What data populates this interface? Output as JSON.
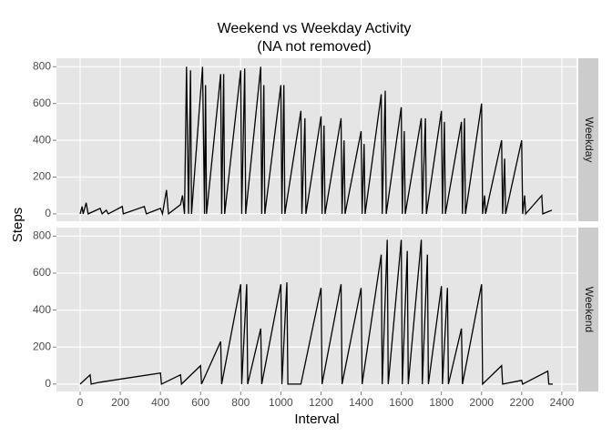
{
  "chart_data": {
    "type": "line",
    "title": "Weekend vs Weekday Activity",
    "subtitle": "(NA not removed)",
    "x_label": "Interval",
    "y_label": "Steps",
    "xlim": [
      -118,
      2473
    ],
    "xticks": [
      0,
      200,
      400,
      600,
      800,
      1000,
      1200,
      1400,
      1600,
      1800,
      2000,
      2200,
      2400
    ],
    "ylim": [
      -40,
      846
    ],
    "yticks": [
      0,
      200,
      400,
      600,
      800
    ],
    "grid": true,
    "series": [
      {
        "name": "Weekday",
        "color": "#000000",
        "x": [
          0,
          10,
          15,
          30,
          40,
          100,
          110,
          130,
          140,
          210,
          215,
          320,
          330,
          400,
          410,
          430,
          440,
          500,
          510,
          520,
          530,
          540,
          550,
          555,
          610,
          620,
          625,
          630,
          700,
          705,
          715,
          720,
          800,
          805,
          820,
          825,
          900,
          905,
          915,
          920,
          1000,
          1005,
          1015,
          1020,
          1100,
          1105,
          1120,
          1125,
          1200,
          1205,
          1215,
          1220,
          1300,
          1305,
          1315,
          1320,
          1400,
          1405,
          1415,
          1420,
          1500,
          1505,
          1520,
          1525,
          1600,
          1605,
          1615,
          1620,
          1700,
          1705,
          1720,
          1725,
          1800,
          1805,
          1815,
          1820,
          1900,
          1905,
          1915,
          1920,
          2000,
          2005,
          2015,
          2020,
          2100,
          2105,
          2115,
          2120,
          2200,
          2205,
          2215,
          2220,
          2300,
          2305,
          2350
        ],
        "values": [
          0,
          40,
          0,
          60,
          0,
          30,
          0,
          20,
          0,
          40,
          0,
          40,
          0,
          30,
          0,
          130,
          0,
          50,
          100,
          0,
          800,
          0,
          780,
          0,
          800,
          0,
          700,
          0,
          760,
          0,
          760,
          0,
          780,
          0,
          790,
          0,
          800,
          0,
          700,
          0,
          700,
          0,
          700,
          0,
          560,
          0,
          520,
          0,
          530,
          0,
          480,
          0,
          520,
          0,
          400,
          0,
          450,
          0,
          380,
          0,
          650,
          0,
          670,
          0,
          580,
          0,
          450,
          0,
          520,
          0,
          520,
          0,
          560,
          0,
          500,
          0,
          500,
          0,
          520,
          0,
          600,
          0,
          100,
          0,
          400,
          0,
          300,
          0,
          400,
          0,
          100,
          0,
          100,
          0,
          20
        ]
      },
      {
        "name": "Weekend",
        "color": "#000000",
        "x": [
          0,
          50,
          55,
          100,
          400,
          405,
          500,
          505,
          600,
          605,
          700,
          705,
          800,
          805,
          830,
          835,
          900,
          905,
          1000,
          1005,
          1030,
          1035,
          1100,
          1200,
          1205,
          1300,
          1305,
          1400,
          1405,
          1500,
          1505,
          1530,
          1535,
          1600,
          1605,
          1630,
          1635,
          1700,
          1705,
          1730,
          1735,
          1800,
          1805,
          1830,
          1835,
          1900,
          1905,
          2000,
          2005,
          2100,
          2105,
          2200,
          2205,
          2330,
          2335,
          2355
        ],
        "values": [
          0,
          50,
          0,
          10,
          60,
          0,
          50,
          0,
          100,
          0,
          230,
          0,
          540,
          0,
          540,
          0,
          300,
          0,
          540,
          0,
          550,
          0,
          0,
          520,
          0,
          540,
          0,
          520,
          0,
          700,
          0,
          780,
          0,
          780,
          0,
          720,
          0,
          780,
          0,
          700,
          0,
          530,
          0,
          520,
          0,
          300,
          0,
          540,
          0,
          100,
          0,
          20,
          0,
          70,
          0,
          0
        ]
      }
    ]
  }
}
